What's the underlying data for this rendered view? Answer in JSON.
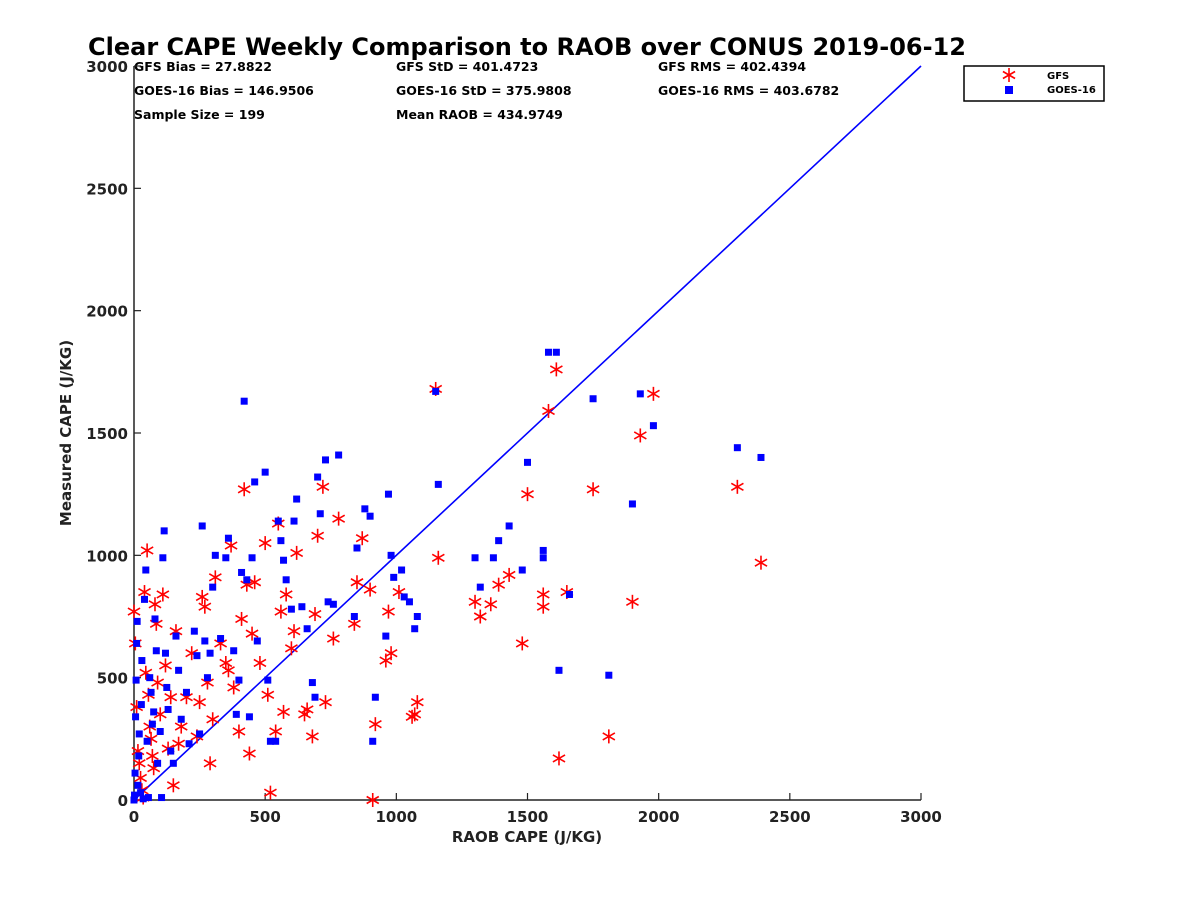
{
  "colors": {
    "gfs": "#ff0000",
    "goes": "#0000ff",
    "line": "#0000ff",
    "axis": "#222222"
  },
  "chart_data": {
    "type": "scatter",
    "title": "Clear CAPE Weekly Comparison to RAOB over CONUS 2019-06-12",
    "xlabel": "RAOB CAPE (J/KG)",
    "ylabel": "Measured CAPE (J/KG)",
    "xlim": [
      0,
      3000
    ],
    "ylim": [
      0,
      3000
    ],
    "xticks": [
      "0",
      "500",
      "1000",
      "1500",
      "2000",
      "2500",
      "3000"
    ],
    "yticks": [
      "0",
      "500",
      "1000",
      "1500",
      "2000",
      "2500",
      "3000"
    ],
    "legend_position": "top-right",
    "grid": false,
    "stats": [
      [
        "GFS Bias = 27.8822",
        "GFS StD = 401.4723",
        "GFS RMS = 402.4394"
      ],
      [
        "GOES-16 Bias = 146.9506",
        "GOES-16 StD = 375.9808",
        "GOES-16 RMS = 403.6782"
      ],
      [
        "Sample Size = 199",
        "Mean RAOB = 434.9749",
        ""
      ]
    ],
    "reference_line": {
      "x": [
        0,
        3000
      ],
      "y": [
        0,
        3000
      ]
    },
    "series": [
      {
        "name": "GFS",
        "marker": "asterisk",
        "points": [
          [
            0,
            770
          ],
          [
            5,
            640
          ],
          [
            10,
            380
          ],
          [
            15,
            200
          ],
          [
            20,
            150
          ],
          [
            25,
            90
          ],
          [
            30,
            40
          ],
          [
            35,
            10
          ],
          [
            40,
            850
          ],
          [
            45,
            520
          ],
          [
            50,
            1020
          ],
          [
            55,
            430
          ],
          [
            60,
            300
          ],
          [
            65,
            250
          ],
          [
            70,
            180
          ],
          [
            75,
            130
          ],
          [
            80,
            800
          ],
          [
            85,
            720
          ],
          [
            90,
            480
          ],
          [
            100,
            350
          ],
          [
            110,
            840
          ],
          [
            120,
            550
          ],
          [
            130,
            210
          ],
          [
            140,
            420
          ],
          [
            150,
            60
          ],
          [
            160,
            690
          ],
          [
            170,
            230
          ],
          [
            180,
            300
          ],
          [
            200,
            420
          ],
          [
            220,
            600
          ],
          [
            240,
            260
          ],
          [
            250,
            400
          ],
          [
            260,
            830
          ],
          [
            270,
            790
          ],
          [
            280,
            480
          ],
          [
            290,
            150
          ],
          [
            300,
            330
          ],
          [
            310,
            910
          ],
          [
            330,
            640
          ],
          [
            350,
            560
          ],
          [
            360,
            530
          ],
          [
            370,
            1040
          ],
          [
            380,
            460
          ],
          [
            400,
            280
          ],
          [
            410,
            740
          ],
          [
            420,
            1270
          ],
          [
            430,
            880
          ],
          [
            440,
            190
          ],
          [
            450,
            680
          ],
          [
            460,
            890
          ],
          [
            480,
            560
          ],
          [
            500,
            1050
          ],
          [
            510,
            430
          ],
          [
            520,
            30
          ],
          [
            540,
            280
          ],
          [
            550,
            1130
          ],
          [
            560,
            770
          ],
          [
            570,
            360
          ],
          [
            580,
            840
          ],
          [
            600,
            620
          ],
          [
            610,
            690
          ],
          [
            620,
            1010
          ],
          [
            650,
            350
          ],
          [
            660,
            370
          ],
          [
            680,
            260
          ],
          [
            690,
            760
          ],
          [
            700,
            1080
          ],
          [
            720,
            1280
          ],
          [
            730,
            400
          ],
          [
            760,
            660
          ],
          [
            780,
            1150
          ],
          [
            840,
            720
          ],
          [
            850,
            890
          ],
          [
            870,
            1070
          ],
          [
            900,
            860
          ],
          [
            910,
            0
          ],
          [
            920,
            310
          ],
          [
            960,
            570
          ],
          [
            970,
            770
          ],
          [
            980,
            600
          ],
          [
            1010,
            850
          ],
          [
            1060,
            340
          ],
          [
            1070,
            350
          ],
          [
            1080,
            400
          ],
          [
            1150,
            1680
          ],
          [
            1160,
            990
          ],
          [
            1300,
            810
          ],
          [
            1320,
            750
          ],
          [
            1360,
            800
          ],
          [
            1390,
            880
          ],
          [
            1430,
            920
          ],
          [
            1480,
            640
          ],
          [
            1500,
            1250
          ],
          [
            1560,
            790
          ],
          [
            1560,
            840
          ],
          [
            1580,
            1590
          ],
          [
            1610,
            1760
          ],
          [
            1620,
            170
          ],
          [
            1650,
            850
          ],
          [
            1750,
            1270
          ],
          [
            1810,
            260
          ],
          [
            1900,
            810
          ],
          [
            1930,
            1490
          ],
          [
            1980,
            1660
          ],
          [
            2300,
            1280
          ],
          [
            2390,
            970
          ]
        ]
      },
      {
        "name": "GOES-16",
        "marker": "square",
        "points": [
          [
            0,
            0
          ],
          [
            2,
            20
          ],
          [
            4,
            110
          ],
          [
            6,
            340
          ],
          [
            8,
            490
          ],
          [
            10,
            640
          ],
          [
            12,
            730
          ],
          [
            15,
            60
          ],
          [
            18,
            180
          ],
          [
            20,
            270
          ],
          [
            25,
            30
          ],
          [
            28,
            390
          ],
          [
            30,
            570
          ],
          [
            35,
            5
          ],
          [
            40,
            820
          ],
          [
            45,
            940
          ],
          [
            50,
            240
          ],
          [
            55,
            10
          ],
          [
            60,
            500
          ],
          [
            65,
            440
          ],
          [
            70,
            310
          ],
          [
            75,
            360
          ],
          [
            80,
            740
          ],
          [
            85,
            610
          ],
          [
            90,
            150
          ],
          [
            100,
            280
          ],
          [
            105,
            10
          ],
          [
            110,
            990
          ],
          [
            115,
            1100
          ],
          [
            120,
            600
          ],
          [
            125,
            460
          ],
          [
            130,
            370
          ],
          [
            140,
            200
          ],
          [
            150,
            150
          ],
          [
            160,
            670
          ],
          [
            170,
            530
          ],
          [
            180,
            330
          ],
          [
            200,
            440
          ],
          [
            210,
            230
          ],
          [
            230,
            690
          ],
          [
            240,
            590
          ],
          [
            250,
            270
          ],
          [
            260,
            1120
          ],
          [
            270,
            650
          ],
          [
            280,
            500
          ],
          [
            290,
            600
          ],
          [
            300,
            870
          ],
          [
            310,
            1000
          ],
          [
            330,
            660
          ],
          [
            350,
            990
          ],
          [
            360,
            1070
          ],
          [
            380,
            610
          ],
          [
            390,
            350
          ],
          [
            400,
            490
          ],
          [
            410,
            930
          ],
          [
            420,
            1630
          ],
          [
            430,
            900
          ],
          [
            440,
            340
          ],
          [
            450,
            990
          ],
          [
            460,
            1300
          ],
          [
            470,
            650
          ],
          [
            500,
            1340
          ],
          [
            510,
            490
          ],
          [
            520,
            240
          ],
          [
            540,
            240
          ],
          [
            550,
            1140
          ],
          [
            560,
            1060
          ],
          [
            570,
            980
          ],
          [
            580,
            900
          ],
          [
            600,
            780
          ],
          [
            610,
            1140
          ],
          [
            620,
            1230
          ],
          [
            640,
            790
          ],
          [
            660,
            700
          ],
          [
            680,
            480
          ],
          [
            690,
            420
          ],
          [
            700,
            1320
          ],
          [
            710,
            1170
          ],
          [
            730,
            1390
          ],
          [
            740,
            810
          ],
          [
            760,
            800
          ],
          [
            780,
            1410
          ],
          [
            840,
            750
          ],
          [
            850,
            1030
          ],
          [
            880,
            1190
          ],
          [
            900,
            1160
          ],
          [
            910,
            240
          ],
          [
            920,
            420
          ],
          [
            960,
            670
          ],
          [
            970,
            1250
          ],
          [
            980,
            1000
          ],
          [
            990,
            910
          ],
          [
            1020,
            940
          ],
          [
            1030,
            830
          ],
          [
            1050,
            810
          ],
          [
            1070,
            700
          ],
          [
            1080,
            750
          ],
          [
            1150,
            1670
          ],
          [
            1160,
            1290
          ],
          [
            1300,
            990
          ],
          [
            1320,
            870
          ],
          [
            1370,
            990
          ],
          [
            1390,
            1060
          ],
          [
            1430,
            1120
          ],
          [
            1480,
            940
          ],
          [
            1500,
            1380
          ],
          [
            1560,
            990
          ],
          [
            1560,
            1020
          ],
          [
            1580,
            1830
          ],
          [
            1610,
            1830
          ],
          [
            1620,
            530
          ],
          [
            1660,
            840
          ],
          [
            1750,
            1640
          ],
          [
            1810,
            510
          ],
          [
            1900,
            1210
          ],
          [
            1930,
            1660
          ],
          [
            1980,
            1530
          ],
          [
            2300,
            1440
          ],
          [
            2390,
            1400
          ]
        ]
      }
    ]
  }
}
